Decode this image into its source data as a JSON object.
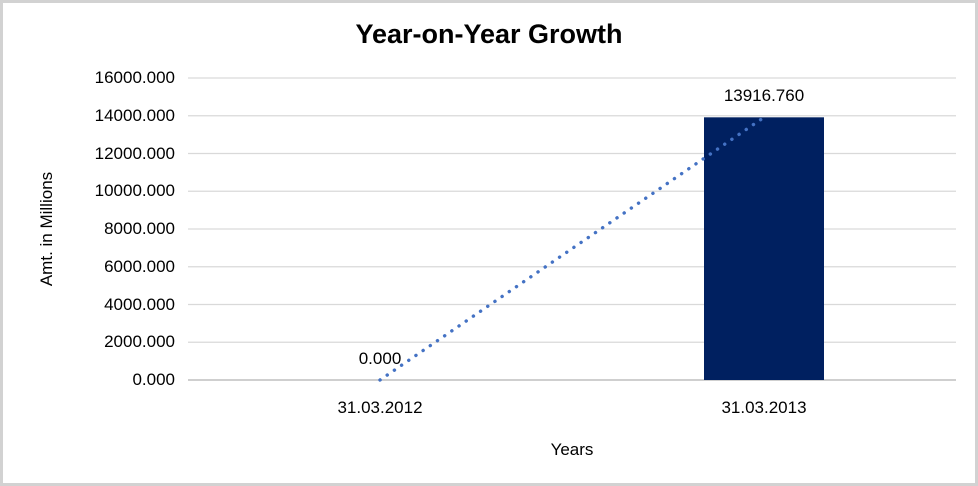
{
  "chart_data": {
    "type": "bar",
    "title": "Year-on-Year Growth",
    "xlabel": "Years",
    "ylabel": "Amt. in Millions",
    "categories": [
      "31.03.2012",
      "31.03.2013"
    ],
    "values": [
      0,
      13916.76
    ],
    "data_labels": [
      "0.000",
      "13916.760"
    ],
    "ylim": [
      0,
      16000
    ],
    "ytick_step": 2000,
    "ytick_labels": [
      "0.000",
      "2000.000",
      "4000.000",
      "6000.000",
      "8000.000",
      "10000.000",
      "12000.000",
      "14000.000",
      "16000.000"
    ],
    "grid": true,
    "legend": "none",
    "bar_color": "#002060",
    "trendline": {
      "type": "linear",
      "style": "dotted",
      "color": "#4472c4"
    },
    "gridline_color": "#d9d9d9",
    "axis_line_color": "#bfbfbf",
    "text_color": "#000000"
  }
}
